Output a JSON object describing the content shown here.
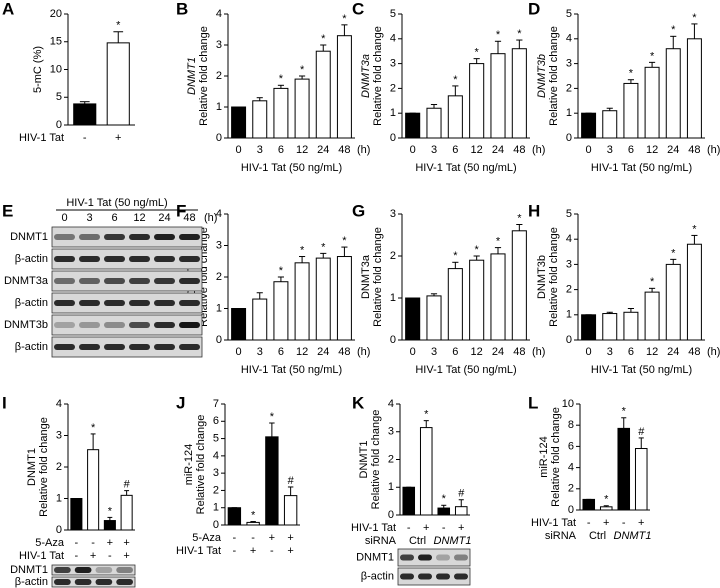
{
  "chart_data": [
    {
      "type": "bar",
      "label": "A",
      "ylabel": "5-mC (%)",
      "values": [
        3.8,
        14.8
      ],
      "errors": [
        0.4,
        2.0
      ],
      "annotations": [
        null,
        "*"
      ],
      "colors": [
        "#000000",
        "#ffffff"
      ],
      "ylim": [
        0,
        20
      ],
      "yticks": [
        0,
        5,
        10,
        15,
        20
      ],
      "conditions": [
        {
          "name": "HIV-1 Tat",
          "values": [
            "-",
            "+"
          ]
        }
      ]
    },
    {
      "type": "bar",
      "label": "B",
      "gene": "DNMT1",
      "gene_italic": true,
      "ylabel": "Relative fold change",
      "categories": [
        "0",
        "3",
        "6",
        "12",
        "24",
        "48"
      ],
      "x_unit": "(h)",
      "xlabel": "HIV-1 Tat (50 ng/mL)",
      "values": [
        1,
        1.2,
        1.6,
        1.9,
        2.8,
        3.3
      ],
      "errors": [
        0,
        0.1,
        0.1,
        0.1,
        0.2,
        0.35
      ],
      "annotations": [
        null,
        null,
        "*",
        "*",
        "*",
        "*"
      ],
      "colors": [
        "#000000",
        "#ffffff",
        "#ffffff",
        "#ffffff",
        "#ffffff",
        "#ffffff"
      ],
      "ylim": [
        0,
        4
      ],
      "yticks": [
        0,
        1,
        2,
        3,
        4
      ]
    },
    {
      "type": "bar",
      "label": "C",
      "gene": "DNMT3a",
      "gene_italic": true,
      "ylabel": "Relative fold change",
      "categories": [
        "0",
        "3",
        "6",
        "12",
        "24",
        "48"
      ],
      "x_unit": "(h)",
      "xlabel": "HIV-1 Tat (50 ng/mL)",
      "values": [
        1,
        1.2,
        1.7,
        3.0,
        3.4,
        3.6
      ],
      "errors": [
        0,
        0.15,
        0.4,
        0.2,
        0.5,
        0.35
      ],
      "annotations": [
        null,
        null,
        "*",
        "*",
        "*",
        "*"
      ],
      "colors": [
        "#000000",
        "#ffffff",
        "#ffffff",
        "#ffffff",
        "#ffffff",
        "#ffffff"
      ],
      "ylim": [
        0,
        5
      ],
      "yticks": [
        0,
        1,
        2,
        3,
        4,
        5
      ]
    },
    {
      "type": "bar",
      "label": "D",
      "gene": "DNMT3b",
      "gene_italic": true,
      "ylabel": "Relative fold change",
      "categories": [
        "0",
        "3",
        "6",
        "12",
        "24",
        "48"
      ],
      "x_unit": "(h)",
      "xlabel": "HIV-1 Tat (50 ng/mL)",
      "values": [
        1,
        1.1,
        2.2,
        2.85,
        3.6,
        4.0
      ],
      "errors": [
        0,
        0.1,
        0.15,
        0.2,
        0.5,
        0.6
      ],
      "annotations": [
        null,
        null,
        "*",
        "*",
        "*",
        "*"
      ],
      "colors": [
        "#000000",
        "#ffffff",
        "#ffffff",
        "#ffffff",
        "#ffffff",
        "#ffffff"
      ],
      "ylim": [
        0,
        5
      ],
      "yticks": [
        0,
        1,
        2,
        3,
        4,
        5
      ]
    },
    {
      "type": "bar",
      "label": "F",
      "gene": "DNMT1",
      "gene_italic": false,
      "ylabel": "Relative fold change",
      "categories": [
        "0",
        "3",
        "6",
        "12",
        "24",
        "48"
      ],
      "x_unit": "(h)",
      "xlabel": "HIV-1 Tat (50 ng/mL)",
      "values": [
        1,
        1.3,
        1.85,
        2.45,
        2.6,
        2.65
      ],
      "errors": [
        0,
        0.2,
        0.15,
        0.2,
        0.15,
        0.3
      ],
      "annotations": [
        null,
        null,
        "*",
        "*",
        "*",
        "*"
      ],
      "colors": [
        "#000000",
        "#ffffff",
        "#ffffff",
        "#ffffff",
        "#ffffff",
        "#ffffff"
      ],
      "ylim": [
        0,
        4
      ],
      "yticks": [
        0,
        1,
        2,
        3,
        4
      ]
    },
    {
      "type": "bar",
      "label": "G",
      "gene": "DNMT3a",
      "gene_italic": false,
      "ylabel": "Relative fold change",
      "categories": [
        "0",
        "3",
        "6",
        "12",
        "24",
        "48"
      ],
      "x_unit": "(h)",
      "xlabel": "HIV-1 Tat (50 ng/mL)",
      "values": [
        1,
        1.05,
        1.7,
        1.9,
        2.05,
        2.6
      ],
      "errors": [
        0,
        0.05,
        0.15,
        0.1,
        0.15,
        0.15
      ],
      "annotations": [
        null,
        null,
        "*",
        "*",
        "*",
        "*"
      ],
      "colors": [
        "#000000",
        "#ffffff",
        "#ffffff",
        "#ffffff",
        "#ffffff",
        "#ffffff"
      ],
      "ylim": [
        0,
        3
      ],
      "yticks": [
        0,
        1,
        2,
        3
      ]
    },
    {
      "type": "bar",
      "label": "H",
      "gene": "DNMT3b",
      "gene_italic": false,
      "ylabel": "Relative fold change",
      "categories": [
        "0",
        "3",
        "6",
        "12",
        "24",
        "48"
      ],
      "x_unit": "(h)",
      "xlabel": "HIV-1 Tat (50 ng/mL)",
      "values": [
        1,
        1.05,
        1.1,
        1.9,
        3.0,
        3.8
      ],
      "errors": [
        0,
        0.05,
        0.15,
        0.15,
        0.2,
        0.35
      ],
      "annotations": [
        null,
        null,
        null,
        "*",
        "*",
        "*"
      ],
      "colors": [
        "#000000",
        "#ffffff",
        "#ffffff",
        "#ffffff",
        "#ffffff",
        "#ffffff"
      ],
      "ylim": [
        0,
        5
      ],
      "yticks": [
        0,
        1,
        2,
        3,
        4,
        5
      ]
    },
    {
      "type": "bar",
      "label": "I",
      "gene": "DNMT1",
      "gene_italic": false,
      "ylabel": "Relative fold change",
      "values": [
        1,
        2.55,
        0.3,
        1.1
      ],
      "errors": [
        0,
        0.5,
        0.1,
        0.15
      ],
      "annotations": [
        null,
        "*",
        "*",
        "#"
      ],
      "colors": [
        "#000000",
        "#ffffff",
        "#000000",
        "#ffffff"
      ],
      "ylim": [
        0,
        4
      ],
      "yticks": [
        0,
        1,
        2,
        3,
        4
      ],
      "conditions": [
        {
          "name": "5-Aza",
          "values": [
            "-",
            "-",
            "+",
            "+"
          ]
        },
        {
          "name": "HIV-1 Tat",
          "values": [
            "-",
            "+",
            "-",
            "+"
          ]
        }
      ]
    },
    {
      "type": "bar",
      "label": "J",
      "gene": "miR-124",
      "gene_italic": false,
      "ylabel": "Relative fold change",
      "values": [
        1,
        0.15,
        5.1,
        1.7
      ],
      "errors": [
        0,
        0.05,
        0.8,
        0.5
      ],
      "annotations": [
        null,
        "*",
        "*",
        "#"
      ],
      "colors": [
        "#000000",
        "#ffffff",
        "#000000",
        "#ffffff"
      ],
      "ylim": [
        0,
        7
      ],
      "yticks": [
        0,
        1,
        2,
        3,
        4,
        5,
        6,
        7
      ],
      "conditions": [
        {
          "name": "5-Aza",
          "values": [
            "-",
            "-",
            "+",
            "+"
          ]
        },
        {
          "name": "HIV-1 Tat",
          "values": [
            "-",
            "+",
            "-",
            "+"
          ]
        }
      ]
    },
    {
      "type": "bar",
      "label": "K",
      "gene": "DNMT1",
      "gene_italic": false,
      "ylabel": "Relative fold change",
      "values": [
        1,
        3.15,
        0.25,
        0.3
      ],
      "errors": [
        0,
        0.25,
        0.1,
        0.25
      ],
      "annotations": [
        null,
        "*",
        "*",
        "#"
      ],
      "colors": [
        "#000000",
        "#ffffff",
        "#000000",
        "#ffffff"
      ],
      "ylim": [
        0,
        4
      ],
      "yticks": [
        0,
        1,
        2,
        3,
        4
      ],
      "conditions": [
        {
          "name": "HIV-1 Tat",
          "values": [
            "-",
            "+",
            "-",
            "+"
          ]
        },
        {
          "name": "siRNA",
          "groups": [
            {
              "label": "Ctrl",
              "span": 2,
              "italic": false
            },
            {
              "label": "DNMT1",
              "span": 2,
              "italic": true
            }
          ]
        }
      ]
    },
    {
      "type": "bar",
      "label": "L",
      "gene": "miR-124",
      "gene_italic": false,
      "ylabel": "Relative fold change",
      "values": [
        1,
        0.3,
        7.7,
        5.8
      ],
      "errors": [
        0,
        0.1,
        1.0,
        1.0
      ],
      "annotations": [
        null,
        "*",
        "*",
        "#"
      ],
      "colors": [
        "#000000",
        "#ffffff",
        "#000000",
        "#ffffff"
      ],
      "ylim": [
        0,
        10
      ],
      "yticks": [
        0,
        2,
        4,
        6,
        8,
        10
      ],
      "conditions": [
        {
          "name": "HIV-1 Tat",
          "values": [
            "-",
            "+",
            "-",
            "+"
          ]
        },
        {
          "name": "siRNA",
          "groups": [
            {
              "label": "Ctrl",
              "span": 2,
              "italic": false
            },
            {
              "label": "DNMT1",
              "span": 2,
              "italic": true
            }
          ]
        }
      ]
    }
  ],
  "blots": [
    {
      "label": "E",
      "header": "HIV-1 Tat (50 ng/mL)",
      "lanes": [
        "0",
        "3",
        "6",
        "12",
        "24",
        "48"
      ],
      "lane_unit": "(h)",
      "rows": [
        "DNMT1",
        "β-actin",
        "DNMT3a",
        "β-actin",
        "DNMT3b",
        "β-actin"
      ]
    },
    {
      "rows": [
        "DNMT1",
        "β-actin"
      ]
    },
    {
      "rows": [
        "DNMT1",
        "β-actin"
      ]
    }
  ]
}
